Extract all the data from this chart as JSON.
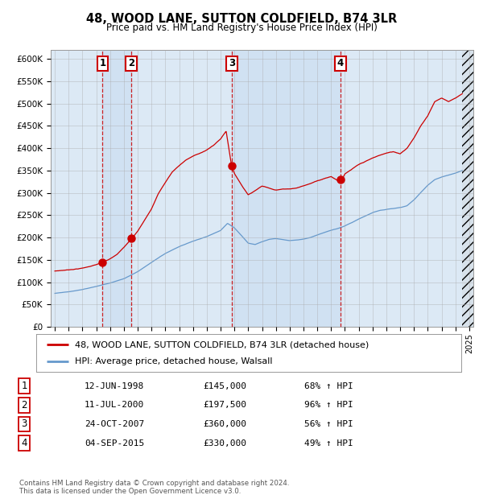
{
  "title": "48, WOOD LANE, SUTTON COLDFIELD, B74 3LR",
  "subtitle": "Price paid vs. HM Land Registry's House Price Index (HPI)",
  "ylim": [
    0,
    620000
  ],
  "yticks": [
    0,
    50000,
    100000,
    150000,
    200000,
    250000,
    300000,
    350000,
    400000,
    450000,
    500000,
    550000,
    600000
  ],
  "ytick_labels": [
    "£0",
    "£50K",
    "£100K",
    "£150K",
    "£200K",
    "£250K",
    "£300K",
    "£350K",
    "£400K",
    "£450K",
    "£500K",
    "£550K",
    "£600K"
  ],
  "xlim_start": 1994.7,
  "xlim_end": 2025.3,
  "red_line_color": "#cc0000",
  "blue_line_color": "#6699cc",
  "background_color": "#ffffff",
  "plot_bg_color": "#dce9f5",
  "grid_color": "#aaaaaa",
  "sale_points": [
    {
      "label": "1",
      "date_x": 1998.45,
      "price": 145000
    },
    {
      "label": "2",
      "date_x": 2000.53,
      "price": 197500
    },
    {
      "label": "3",
      "date_x": 2007.81,
      "price": 360000
    },
    {
      "label": "4",
      "date_x": 2015.67,
      "price": 330000
    }
  ],
  "legend_entries": [
    {
      "color": "#cc0000",
      "label": "48, WOOD LANE, SUTTON COLDFIELD, B74 3LR (detached house)"
    },
    {
      "color": "#6699cc",
      "label": "HPI: Average price, detached house, Walsall"
    }
  ],
  "table_rows": [
    {
      "num": "1",
      "date": "12-JUN-1998",
      "price": "£145,000",
      "hpi": "68% ↑ HPI"
    },
    {
      "num": "2",
      "date": "11-JUL-2000",
      "price": "£197,500",
      "hpi": "96% ↑ HPI"
    },
    {
      "num": "3",
      "date": "24-OCT-2007",
      "price": "£360,000",
      "hpi": "56% ↑ HPI"
    },
    {
      "num": "4",
      "date": "04-SEP-2015",
      "price": "£330,000",
      "hpi": "49% ↑ HPI"
    }
  ],
  "footer": "Contains HM Land Registry data © Crown copyright and database right 2024.\nThis data is licensed under the Open Government Licence v3.0.",
  "hatch_region_start": 2024.5,
  "sale_vline_x": [
    1998.45,
    2000.53,
    2007.81,
    2015.67
  ],
  "red_anchors_x": [
    1995.0,
    1996.0,
    1997.0,
    1997.5,
    1998.0,
    1998.45,
    1999.0,
    1999.5,
    2000.0,
    2000.53,
    2001.0,
    2001.5,
    2002.0,
    2002.5,
    2003.0,
    2003.5,
    2004.0,
    2004.5,
    2005.0,
    2005.5,
    2006.0,
    2006.5,
    2007.0,
    2007.4,
    2007.81,
    2008.0,
    2008.5,
    2009.0,
    2009.5,
    2010.0,
    2010.5,
    2011.0,
    2011.5,
    2012.0,
    2012.5,
    2013.0,
    2013.5,
    2014.0,
    2014.5,
    2015.0,
    2015.67,
    2016.0,
    2016.5,
    2017.0,
    2017.5,
    2018.0,
    2018.5,
    2019.0,
    2019.5,
    2020.0,
    2020.5,
    2021.0,
    2021.5,
    2022.0,
    2022.5,
    2023.0,
    2023.5,
    2024.0,
    2024.5
  ],
  "red_anchors_y": [
    125000,
    128000,
    132000,
    136000,
    140000,
    145000,
    152000,
    162000,
    178000,
    197500,
    215000,
    240000,
    265000,
    300000,
    325000,
    348000,
    362000,
    375000,
    383000,
    390000,
    397000,
    408000,
    422000,
    440000,
    360000,
    345000,
    320000,
    298000,
    308000,
    318000,
    314000,
    310000,
    312000,
    313000,
    315000,
    320000,
    325000,
    332000,
    337000,
    342000,
    330000,
    348000,
    358000,
    368000,
    375000,
    382000,
    388000,
    393000,
    396000,
    392000,
    405000,
    428000,
    455000,
    478000,
    510000,
    518000,
    510000,
    518000,
    528000
  ],
  "blue_anchors_x": [
    1995.0,
    1996.0,
    1997.0,
    1998.0,
    1999.0,
    2000.0,
    2001.0,
    2002.0,
    2003.0,
    2004.0,
    2005.0,
    2006.0,
    2007.0,
    2007.5,
    2008.0,
    2008.5,
    2009.0,
    2009.5,
    2010.0,
    2010.5,
    2011.0,
    2011.5,
    2012.0,
    2012.5,
    2013.0,
    2013.5,
    2014.0,
    2014.5,
    2015.0,
    2015.5,
    2016.0,
    2016.5,
    2017.0,
    2017.5,
    2018.0,
    2018.5,
    2019.0,
    2019.5,
    2020.0,
    2020.5,
    2021.0,
    2021.5,
    2022.0,
    2022.5,
    2023.0,
    2023.5,
    2024.0,
    2024.5
  ],
  "blue_anchors_y": [
    75000,
    78000,
    83000,
    90000,
    98000,
    108000,
    124000,
    145000,
    165000,
    181000,
    193000,
    203000,
    216000,
    232000,
    222000,
    205000,
    188000,
    185000,
    191000,
    196000,
    198000,
    196000,
    194000,
    195000,
    197000,
    201000,
    207000,
    213000,
    218000,
    222000,
    228000,
    235000,
    243000,
    250000,
    257000,
    262000,
    264000,
    266000,
    268000,
    272000,
    285000,
    302000,
    318000,
    330000,
    336000,
    340000,
    344000,
    350000
  ]
}
